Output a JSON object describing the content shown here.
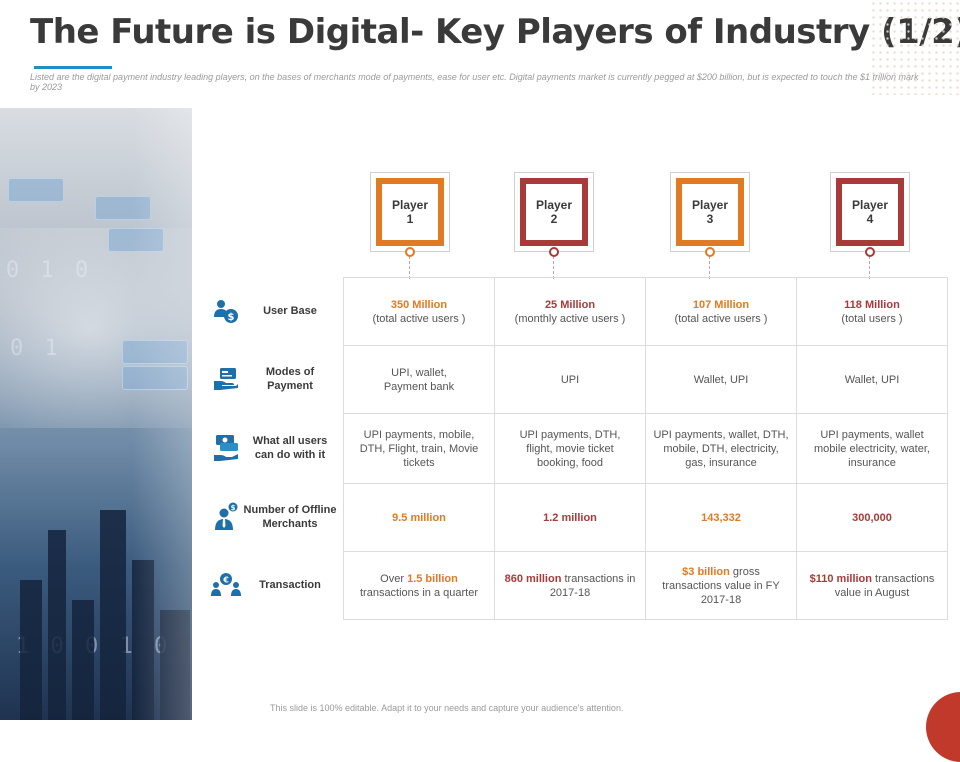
{
  "header": {
    "title": "The Future is Digital- Key Players of Industry (1/2)",
    "subtitle": "Listed are the digital payment industry leading players, on the bases of merchants mode of payments, ease for user etc. Digital payments market is currently pegged at $200 billion, but is expected to touch the $1 trillion mark by 2023",
    "accent_color": "#1f8dc6"
  },
  "players": [
    {
      "line1": "Player",
      "line2": "1",
      "color": "#e07a23"
    },
    {
      "line1": "Player",
      "line2": "2",
      "color": "#a93a3a"
    },
    {
      "line1": "Player",
      "line2": "3",
      "color": "#e07a23"
    },
    {
      "line1": "Player",
      "line2": "4",
      "color": "#a93a3a"
    }
  ],
  "rows": [
    {
      "label": "User Base",
      "icon": "users-dollar-icon"
    },
    {
      "label": "Modes of Payment",
      "icon": "hand-card-icon"
    },
    {
      "label": "What all users can do with it",
      "icon": "hand-money-icon"
    },
    {
      "label": "Number of Offline Merchants",
      "icon": "businessman-dollar-icon"
    },
    {
      "label": "Transaction",
      "icon": "people-exchange-icon"
    }
  ],
  "cells": {
    "user_base": [
      {
        "hl": "350 Million",
        "rest": "(total active users )"
      },
      {
        "hl": "25 Million",
        "rest": "(monthly active users )"
      },
      {
        "hl": "107 Million",
        "rest": "(total active users )"
      },
      {
        "hl": "118 Million",
        "rest": "(total users )"
      }
    ],
    "modes": [
      "UPI, wallet, Payment bank",
      "UPI",
      "Wallet, UPI",
      "Wallet, UPI"
    ],
    "uses": [
      "UPI payments, mobile, DTH, Flight, train, Movie tickets",
      "UPI payments, DTH, flight, movie ticket booking, food",
      "UPI payments, wallet, DTH, mobile, DTH, electricity, gas, insurance",
      "UPI payments, wallet mobile electricity, water, insurance"
    ],
    "merchants": [
      "9.5 million",
      "1.2 million",
      "143,332",
      "300,000"
    ],
    "transactions": [
      {
        "pre": "Over ",
        "hl": "1.5 billion",
        "post": " transactions in a quarter"
      },
      {
        "pre": "",
        "hl": "860 million",
        "post": " transactions in 2017-18"
      },
      {
        "pre": "",
        "hl": "$3 billion",
        "post": " gross transactions value in FY 2017-18"
      },
      {
        "pre": "",
        "hl": "$110 million",
        "post": " transactions value in August"
      }
    ]
  },
  "footer": "This slide is 100% editable. Adapt it to your needs and capture your audience's attention.",
  "colors": {
    "orange": "#e07a23",
    "red": "#a93a3a",
    "icon_blue": "#1f6fa8"
  }
}
